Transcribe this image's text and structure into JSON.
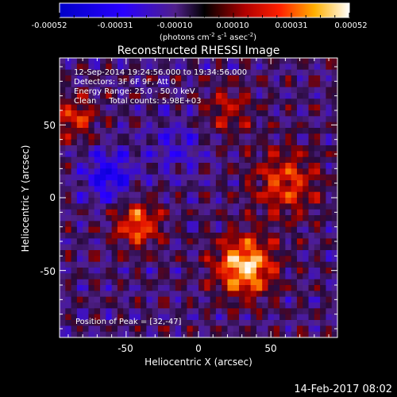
{
  "colorbar": {
    "ticks": [
      "-0.00052",
      "-0.00031",
      "-0.00010",
      "0.00010",
      "0.00031",
      "0.00052"
    ],
    "unit_main": "(photons cm",
    "unit_exp1": "-2",
    "unit_mid": " s",
    "unit_exp2": "-1",
    "unit_end": " asec",
    "unit_exp3": "-2",
    "unit_close": ")"
  },
  "chart_data": {
    "type": "heatmap",
    "title": "Reconstructed RHESSI Image",
    "xlabel": "Heliocentric X (arcsec)",
    "ylabel": "Heliocentric Y (arcsec)",
    "xlim": [
      -96,
      96
    ],
    "ylim": [
      -96,
      96
    ],
    "xticks": [
      -50,
      0,
      50
    ],
    "yticks": [
      50,
      0,
      -50
    ],
    "zlim": [
      -0.00052,
      0.00052
    ],
    "colormap": "hot-blue",
    "peak": [
      32,
      -47
    ],
    "sources": [
      {
        "x": 32,
        "y": -47,
        "amp": 0.00052,
        "sigma": 14
      },
      {
        "x": -42,
        "y": -18,
        "amp": 0.00036,
        "sigma": 11
      },
      {
        "x": 60,
        "y": 10,
        "amp": 0.0003,
        "sigma": 16
      },
      {
        "x": -85,
        "y": 55,
        "amp": 0.00028,
        "sigma": 10
      },
      {
        "x": 20,
        "y": 60,
        "amp": 0.0002,
        "sigma": 12
      },
      {
        "x": -62,
        "y": 15,
        "amp": -0.0003,
        "sigma": 12
      },
      {
        "x": -15,
        "y": 35,
        "amp": -0.00015,
        "sigma": 14
      }
    ],
    "annotations": [
      "12-Sep-2014 19:24:56.000 to 19:34:56.000",
      "Detectors: 3F 6F 9F, Att 0",
      "Energy Range: 25.0 - 50.0 keV",
      "Clean     Total counts: 5.98E+03"
    ],
    "peak_label": "Position of Peak = [32,-47]"
  },
  "footer": {
    "timestamp": "14-Feb-2017 08:02"
  }
}
